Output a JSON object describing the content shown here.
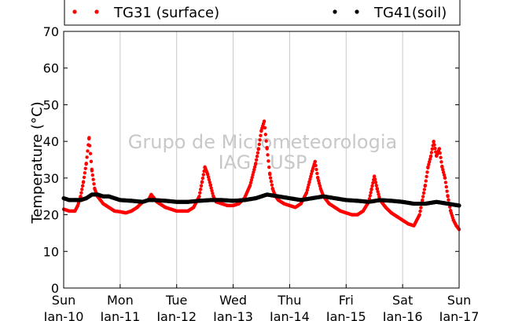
{
  "chart_data": {
    "type": "scatter",
    "title": "",
    "xlabel": "",
    "ylabel": "Temperature (°C)",
    "ylim": [
      0,
      70
    ],
    "yticks": [
      0,
      10,
      20,
      30,
      40,
      50,
      60,
      70
    ],
    "xlim": [
      0,
      7
    ],
    "grid": "vertical",
    "legend_placement": "top",
    "watermark": [
      "Grupo de Micrometeorologia",
      "IAG - USP"
    ],
    "xticks": [
      {
        "pos": 0,
        "day": "Sun",
        "date": "Jan-10"
      },
      {
        "pos": 1,
        "day": "Mon",
        "date": "Jan-11"
      },
      {
        "pos": 2,
        "day": "Tue",
        "date": "Jan-12"
      },
      {
        "pos": 3,
        "day": "Wed",
        "date": "Jan-13"
      },
      {
        "pos": 4,
        "day": "Thu",
        "date": "Jan-14"
      },
      {
        "pos": 5,
        "day": "Fri",
        "date": "Jan-15"
      },
      {
        "pos": 6,
        "day": "Sat",
        "date": "Jan-16"
      },
      {
        "pos": 7,
        "day": "Sun",
        "date": "Jan-17"
      }
    ],
    "series": [
      {
        "name": "TG31 (surface)",
        "color": "#ff0000",
        "x": [
          0,
          0.1,
          0.2,
          0.25,
          0.3,
          0.35,
          0.4,
          0.45,
          0.5,
          0.55,
          0.6,
          0.65,
          0.7,
          0.75,
          0.8,
          0.9,
          1.0,
          1.1,
          1.2,
          1.3,
          1.4,
          1.5,
          1.55,
          1.6,
          1.65,
          1.7,
          1.8,
          1.9,
          2.0,
          2.1,
          2.2,
          2.3,
          2.4,
          2.45,
          2.5,
          2.55,
          2.6,
          2.65,
          2.7,
          2.8,
          2.9,
          3.0,
          3.1,
          3.2,
          3.3,
          3.4,
          3.45,
          3.5,
          3.55,
          3.6,
          3.65,
          3.7,
          3.75,
          3.8,
          3.9,
          4.0,
          4.1,
          4.2,
          4.3,
          4.35,
          4.4,
          4.45,
          4.5,
          4.55,
          4.6,
          4.7,
          4.8,
          4.9,
          5.0,
          5.1,
          5.2,
          5.3,
          5.4,
          5.45,
          5.5,
          5.55,
          5.6,
          5.7,
          5.8,
          5.9,
          6.0,
          6.1,
          6.2,
          6.3,
          6.35,
          6.4,
          6.45,
          6.5,
          6.55,
          6.6,
          6.65,
          6.7,
          6.75,
          6.8,
          6.85,
          6.9,
          6.95,
          7.0
        ],
        "y": [
          21.5,
          21.0,
          21.0,
          22.5,
          25.0,
          29.0,
          34.0,
          41.0,
          32.0,
          27.0,
          25.0,
          24.0,
          23.0,
          22.5,
          22.0,
          21.0,
          20.8,
          20.5,
          21.0,
          22.0,
          23.5,
          24.0,
          25.5,
          24.5,
          23.5,
          23.0,
          22.0,
          21.5,
          21.0,
          21.0,
          21.0,
          22.0,
          25.0,
          29.0,
          33.0,
          31.0,
          28.0,
          25.0,
          23.5,
          23.0,
          22.5,
          22.5,
          23.0,
          24.5,
          28.0,
          34.0,
          38.0,
          43.0,
          45.5,
          38.0,
          31.0,
          27.0,
          25.0,
          24.0,
          23.0,
          22.5,
          22.0,
          23.0,
          26.0,
          29.0,
          32.0,
          34.5,
          30.0,
          27.0,
          25.0,
          23.0,
          22.0,
          21.0,
          20.5,
          20.0,
          20.0,
          21.0,
          23.5,
          27.0,
          30.5,
          27.0,
          24.0,
          22.0,
          20.5,
          19.5,
          18.5,
          17.5,
          17.0,
          20.0,
          24.0,
          28.0,
          33.0,
          36.0,
          40.0,
          36.0,
          38.0,
          33.0,
          30.0,
          25.0,
          21.0,
          18.5,
          17.0,
          16.0
        ]
      },
      {
        "name": "TG41(soil)",
        "color": "#000000",
        "x": [
          0,
          0.1,
          0.2,
          0.3,
          0.4,
          0.5,
          0.6,
          0.7,
          0.8,
          0.9,
          1.0,
          1.2,
          1.4,
          1.5,
          1.6,
          1.8,
          2.0,
          2.2,
          2.4,
          2.6,
          2.8,
          3.0,
          3.2,
          3.4,
          3.6,
          3.8,
          4.0,
          4.2,
          4.4,
          4.6,
          4.8,
          5.0,
          5.2,
          5.4,
          5.6,
          5.8,
          6.0,
          6.2,
          6.4,
          6.6,
          6.8,
          7.0
        ],
        "y": [
          24.5,
          24.0,
          24.0,
          24.0,
          24.5,
          25.5,
          25.5,
          25.0,
          25.0,
          24.5,
          24.0,
          23.8,
          23.5,
          24.0,
          24.0,
          23.8,
          23.5,
          23.5,
          23.8,
          24.0,
          24.0,
          23.8,
          24.0,
          24.5,
          25.5,
          25.0,
          24.5,
          24.0,
          24.5,
          25.0,
          24.5,
          24.0,
          23.8,
          23.5,
          24.0,
          23.8,
          23.5,
          23.0,
          23.0,
          23.5,
          23.0,
          22.5
        ]
      }
    ]
  }
}
